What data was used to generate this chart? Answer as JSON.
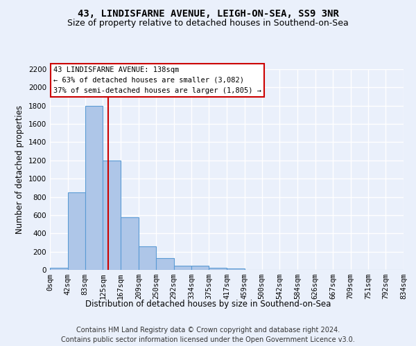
{
  "title_line1": "43, LINDISFARNE AVENUE, LEIGH-ON-SEA, SS9 3NR",
  "title_line2": "Size of property relative to detached houses in Southend-on-Sea",
  "xlabel": "Distribution of detached houses by size in Southend-on-Sea",
  "ylabel": "Number of detached properties",
  "bar_values": [
    25,
    850,
    1800,
    1200,
    580,
    255,
    130,
    45,
    45,
    25,
    15,
    0,
    0,
    0,
    0,
    0,
    0,
    0,
    0,
    0
  ],
  "bin_edges": [
    0,
    42,
    83,
    125,
    167,
    209,
    250,
    292,
    334,
    375,
    417,
    459,
    500,
    542,
    584,
    626,
    667,
    709,
    751,
    792,
    834
  ],
  "tick_labels": [
    "0sqm",
    "42sqm",
    "83sqm",
    "125sqm",
    "167sqm",
    "209sqm",
    "250sqm",
    "292sqm",
    "334sqm",
    "375sqm",
    "417sqm",
    "459sqm",
    "500sqm",
    "542sqm",
    "584sqm",
    "626sqm",
    "667sqm",
    "709sqm",
    "751sqm",
    "792sqm",
    "834sqm"
  ],
  "property_size": 138,
  "bar_color": "#aec6e8",
  "bar_edge_color": "#5b9bd5",
  "line_color": "#cc0000",
  "annotation_line1": "43 LINDISFARNE AVENUE: 138sqm",
  "annotation_line2": "← 63% of detached houses are smaller (3,082)",
  "annotation_line3": "37% of semi-detached houses are larger (1,805) →",
  "annotation_box_color": "#ffffff",
  "annotation_box_edge": "#cc0000",
  "ylim": [
    0,
    2200
  ],
  "yticks": [
    0,
    200,
    400,
    600,
    800,
    1000,
    1200,
    1400,
    1600,
    1800,
    2000,
    2200
  ],
  "footer_line1": "Contains HM Land Registry data © Crown copyright and database right 2024.",
  "footer_line2": "Contains public sector information licensed under the Open Government Licence v3.0.",
  "bg_color": "#eaf0fb",
  "grid_color": "#ffffff",
  "title_fontsize": 10,
  "subtitle_fontsize": 9,
  "axis_label_fontsize": 8.5,
  "tick_fontsize": 7.5,
  "annotation_fontsize": 7.5,
  "footer_fontsize": 7
}
